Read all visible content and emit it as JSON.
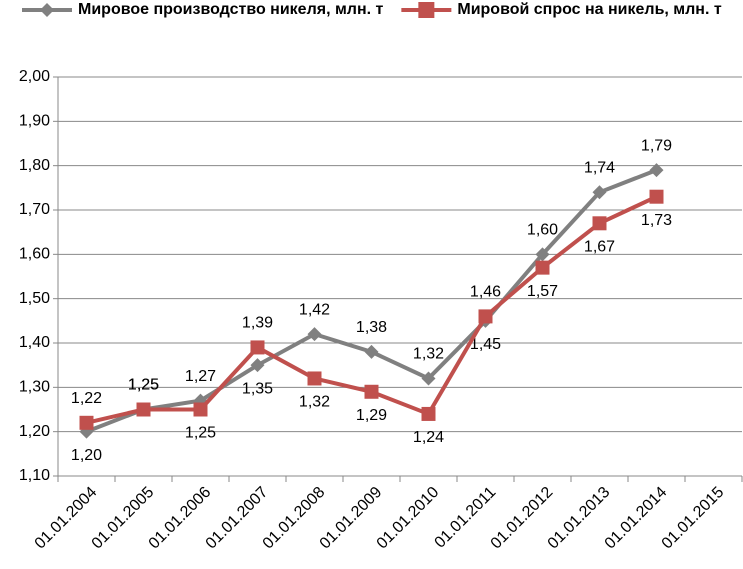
{
  "chart_data": {
    "type": "line",
    "categories": [
      "01.01.2004",
      "01.01.2005",
      "01.01.2006",
      "01.01.2007",
      "01.01.2008",
      "01.01.2009",
      "01.01.2010",
      "01.01.2011",
      "01.01.2012",
      "01.01.2013",
      "01.01.2014",
      "01.01.2015"
    ],
    "series": [
      {
        "name": "Мировое производство никеля, млн. т",
        "color": "#808080",
        "marker": "diamond",
        "values": [
          1.2,
          1.25,
          1.27,
          1.35,
          1.42,
          1.38,
          1.32,
          1.45,
          1.6,
          1.74,
          1.79,
          null
        ],
        "value_labels": [
          "1,20",
          "1,25",
          "1,27",
          "1,35",
          "1,42",
          "1,38",
          "1,32",
          "1,45",
          "1,60",
          "1,74",
          "1,79",
          null
        ]
      },
      {
        "name": "Мировой спрос на никель, млн. т",
        "color": "#c0504d",
        "marker": "square",
        "values": [
          1.22,
          1.25,
          1.25,
          1.39,
          1.32,
          1.29,
          1.24,
          1.46,
          1.57,
          1.67,
          1.73,
          null
        ],
        "value_labels": [
          "1,22",
          "1,25",
          "1,25",
          "1,39",
          "1,32",
          "1,29",
          "1,24",
          "1,46",
          "1,57",
          "1,67",
          "1,73",
          null
        ]
      }
    ],
    "ylim": [
      1.1,
      2.0
    ],
    "yticks": [
      {
        "value": 1.1,
        "label": "1,10"
      },
      {
        "value": 1.2,
        "label": "1,20"
      },
      {
        "value": 1.3,
        "label": "1,30"
      },
      {
        "value": 1.4,
        "label": "1,40"
      },
      {
        "value": 1.5,
        "label": "1,50"
      },
      {
        "value": 1.6,
        "label": "1,60"
      },
      {
        "value": 1.7,
        "label": "1,70"
      },
      {
        "value": 1.8,
        "label": "1,80"
      },
      {
        "value": 1.9,
        "label": "1,90"
      },
      {
        "value": 2.0,
        "label": "2,00"
      }
    ],
    "grid": true,
    "legend": "top"
  }
}
